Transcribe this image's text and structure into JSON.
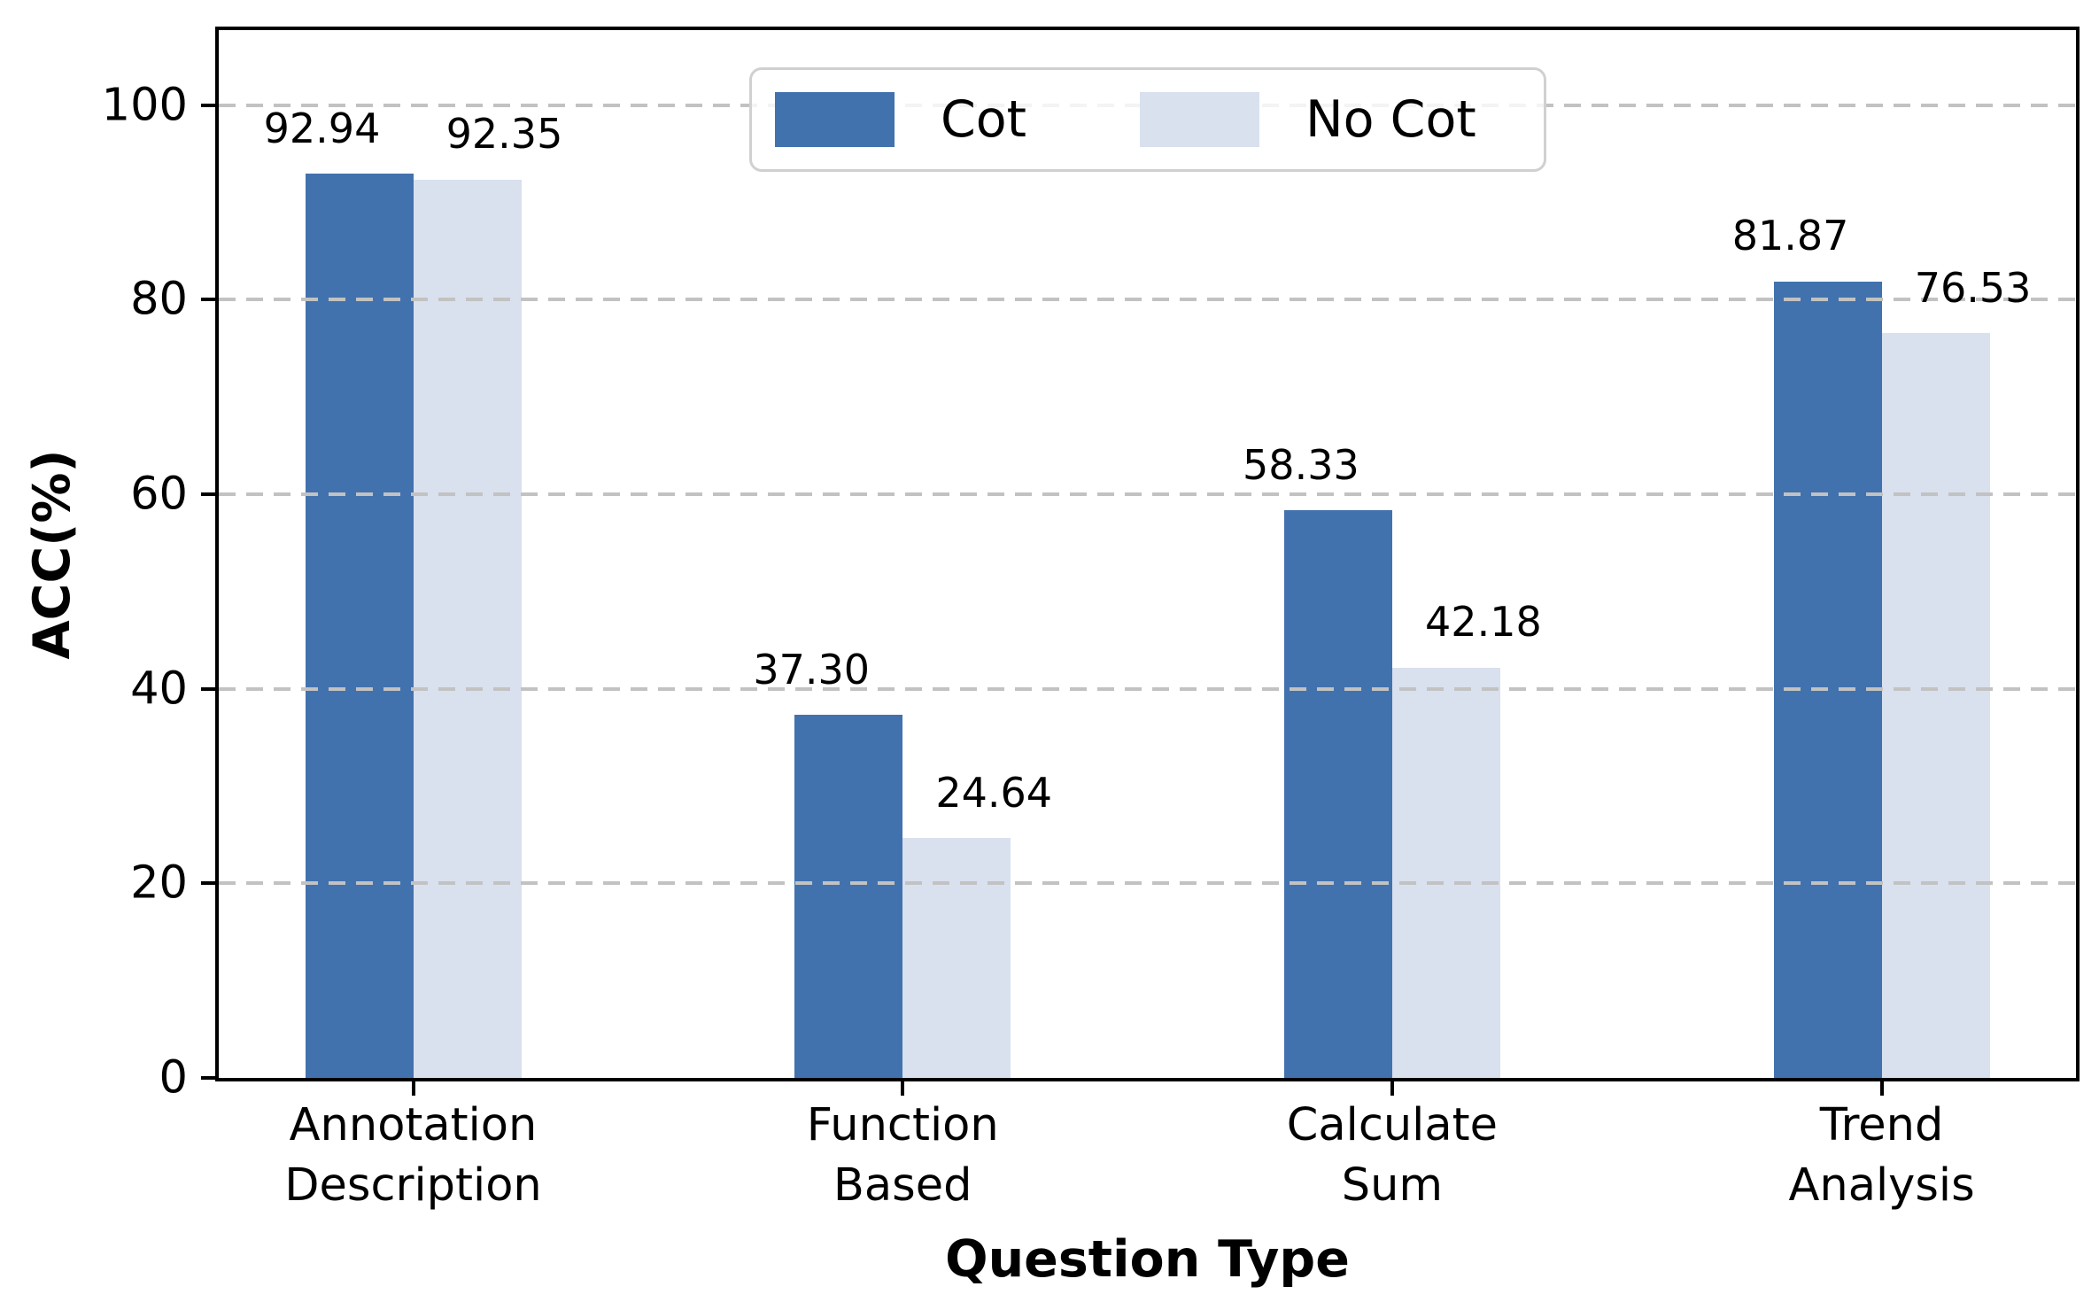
{
  "chart_data": {
    "type": "bar",
    "title": "",
    "xlabel": "Question Type",
    "ylabel": "ACC(%)",
    "categories": [
      [
        "Annotation",
        "Description"
      ],
      [
        "Function",
        "Based"
      ],
      [
        "Calculate",
        "Sum"
      ],
      [
        "Trend",
        "Analysis"
      ]
    ],
    "series": [
      {
        "name": "Cot",
        "color": "#4272ae",
        "values": [
          92.94,
          37.3,
          58.33,
          81.87
        ]
      },
      {
        "name": "No Cot",
        "color": "#d9e0ee",
        "values": [
          92.35,
          24.64,
          42.18,
          76.53
        ]
      }
    ],
    "yticks": [
      0,
      20,
      40,
      60,
      80,
      100
    ],
    "ylim": [
      0,
      107.7
    ],
    "grid": "horizontal-dashed",
    "gridline_color": "#c2c2c2",
    "legend_position": "upper center",
    "value_label_decimals": 2
  }
}
